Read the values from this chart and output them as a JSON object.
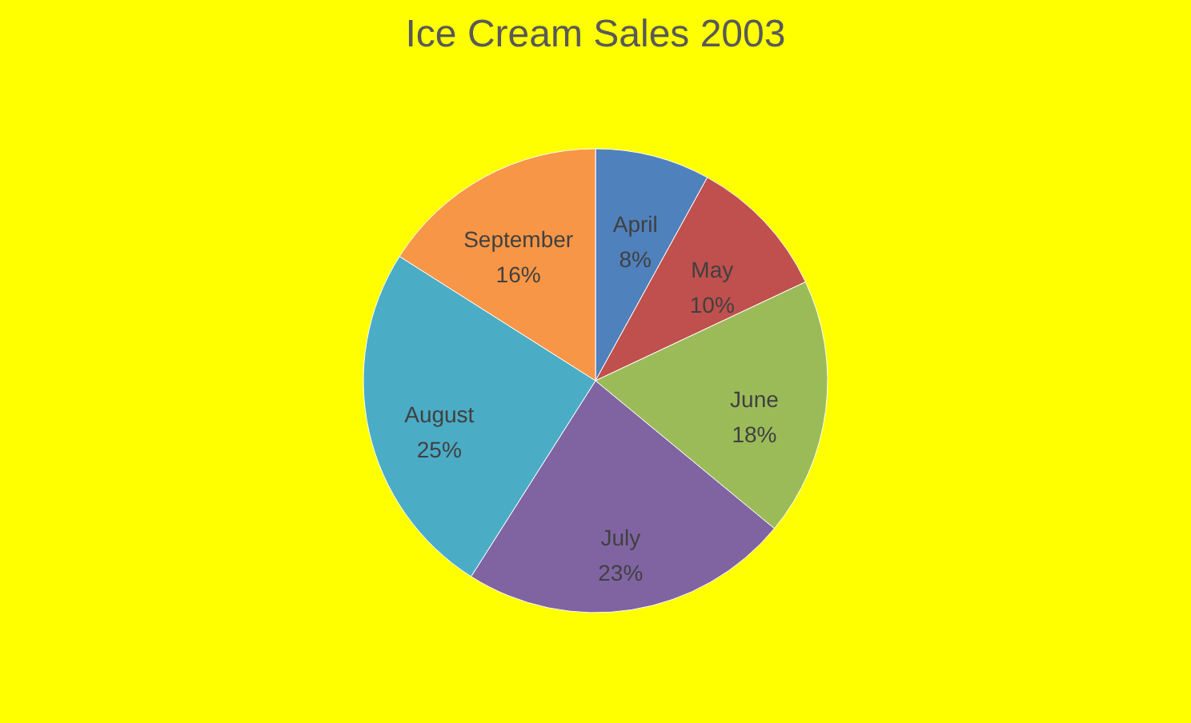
{
  "chart_data": {
    "type": "pie",
    "title": "Ice Cream Sales 2003",
    "categories": [
      "April",
      "May",
      "June",
      "July",
      "August",
      "September"
    ],
    "values": [
      8,
      10,
      18,
      23,
      25,
      16
    ],
    "value_labels": [
      "8%",
      "10%",
      "18%",
      "23%",
      "25%",
      "16%"
    ],
    "colors": [
      "#4f81bd",
      "#c0504d",
      "#9bbb59",
      "#8064a2",
      "#4bacc6",
      "#f79646"
    ],
    "legend": false
  }
}
